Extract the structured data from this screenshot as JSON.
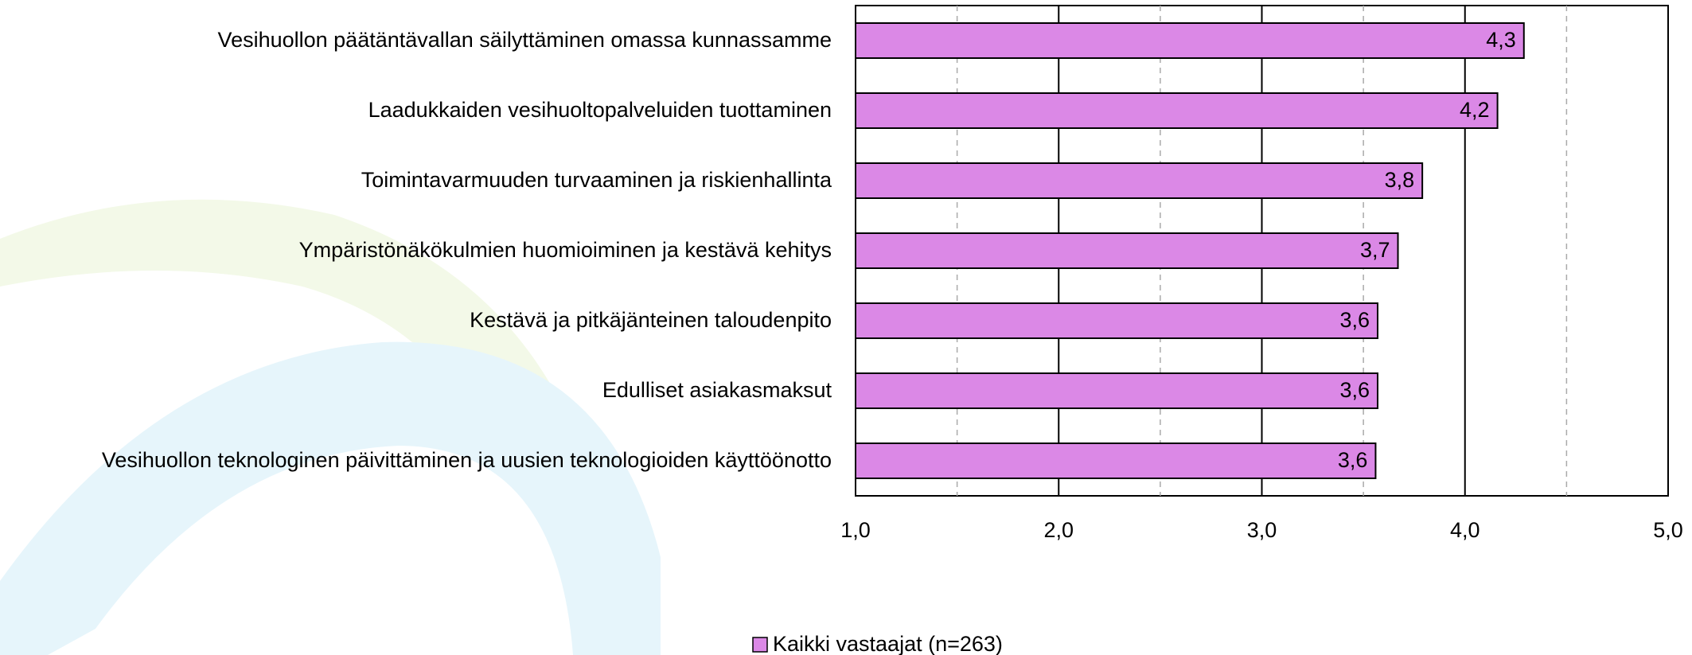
{
  "chart_data": {
    "type": "bar",
    "orientation": "horizontal",
    "categories": [
      "Vesihuollon päätäntävallan säilyttäminen omassa kunnassamme",
      "Laadukkaiden vesihuoltopalveluiden tuottaminen",
      "Toimintavarmuuden turvaaminen ja riskienhallinta",
      "Ympäristönäkökulmien huomioiminen ja kestävä kehitys",
      "Kestävä ja pitkäjänteinen taloudenpito",
      "Edulliset asiakasmaksut",
      "Vesihuollon teknologinen päivittäminen ja uusien teknologioiden käyttöönotto"
    ],
    "series": [
      {
        "name": "Kaikki vastaajat (n=263)",
        "color": "#db88e6",
        "values": [
          4.29,
          4.16,
          3.79,
          3.67,
          3.57,
          3.57,
          3.56
        ],
        "value_labels": [
          "4,3",
          "4,2",
          "3,8",
          "3,7",
          "3,6",
          "3,6",
          "3,6"
        ]
      }
    ],
    "xlim": [
      1,
      5
    ],
    "xticks": [
      {
        "value": 1,
        "label": "1,0"
      },
      {
        "value": 2,
        "label": "2,0"
      },
      {
        "value": 3,
        "label": "3,0"
      },
      {
        "value": 4,
        "label": "4,0"
      },
      {
        "value": 5,
        "label": "5,0"
      }
    ],
    "xminor": [
      1.5,
      2.5,
      3.5,
      4.5
    ],
    "grid": true,
    "legend": "bottom"
  }
}
